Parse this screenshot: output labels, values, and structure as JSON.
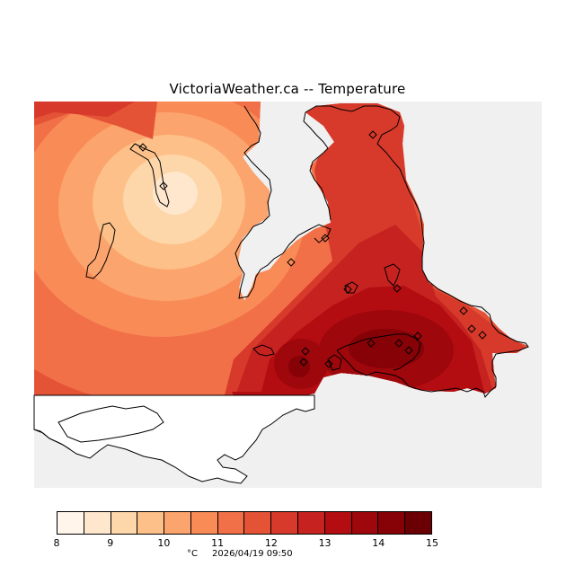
{
  "title": "VictoriaWeather.ca -- Temperature",
  "map": {
    "layer": "temperature contour",
    "background_color": "#f0f0f0",
    "land_outline_color": "#000000",
    "station_marker_icon": "diamond-icon",
    "station_count": 17
  },
  "legend": {
    "unit": "°C",
    "ticks": [
      "8",
      "9",
      "10",
      "11",
      "12",
      "13",
      "14",
      "15"
    ],
    "colors": [
      "#fff5ea",
      "#fee7cc",
      "#fdd6a9",
      "#fdc088",
      "#fca46d",
      "#f98b57",
      "#f17048",
      "#e55337",
      "#d73a2b",
      "#c62220",
      "#b30d12",
      "#9e070b",
      "#860207",
      "#6a0004"
    ]
  },
  "footer": {
    "unit": "°C",
    "timestamp": "2026/04/19 09:50"
  }
}
